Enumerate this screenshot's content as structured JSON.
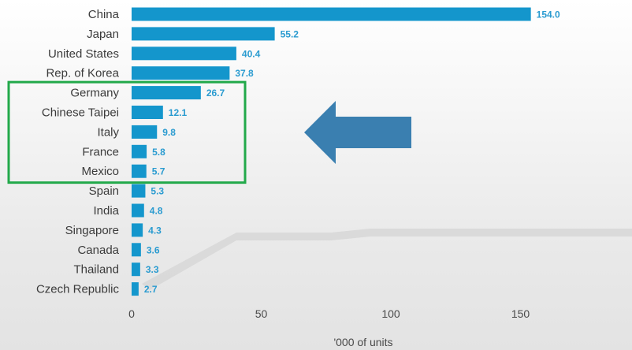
{
  "chart_data": {
    "type": "bar",
    "orientation": "horizontal",
    "categories": [
      "China",
      "Japan",
      "United States",
      "Rep. of Korea",
      "Germany",
      "Chinese Taipei",
      "Italy",
      "France",
      "Mexico",
      "Spain",
      "India",
      "Singapore",
      "Canada",
      "Thailand",
      "Czech Republic"
    ],
    "values": [
      154.0,
      55.2,
      40.4,
      37.8,
      26.7,
      12.1,
      9.8,
      5.8,
      5.7,
      5.3,
      4.8,
      4.3,
      3.6,
      3.3,
      2.7
    ],
    "value_labels": [
      "154.0",
      "55.2",
      "40.4",
      "37.8",
      "26.7",
      "12.1",
      "9.8",
      "5.8",
      "5.7",
      "5.3",
      "4.8",
      "4.3",
      "3.6",
      "3.3",
      "2.7"
    ],
    "xlabel": "'000 of units",
    "xticks": [
      "0",
      "50",
      "100",
      "150"
    ],
    "xlim": [
      0,
      155
    ],
    "grid": false,
    "bar_color": "#1496cc",
    "highlight": {
      "categories": [
        "Germany",
        "Chinese Taipei",
        "Italy",
        "France",
        "Mexico"
      ],
      "box_color": "#22a94a",
      "arrow_color": "#3a7fb0",
      "arrow_direction": "left"
    }
  }
}
